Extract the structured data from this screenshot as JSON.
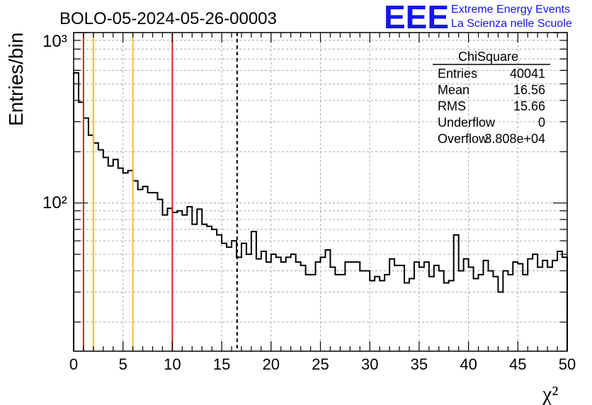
{
  "run_title": "BOLO-05-2024-05-26-00003",
  "logo": {
    "text": "EEE",
    "line1": "Extreme Energy Events",
    "line2": "La Scienza nelle Scuole",
    "color": "#1515f0"
  },
  "stats_box": {
    "title": "ChiSquare",
    "rows": [
      {
        "label": "Entries",
        "value": "40041"
      },
      {
        "label": "Mean",
        "value": "16.56"
      },
      {
        "label": "RMS",
        "value": "15.66"
      },
      {
        "label": "Underflow",
        "value": "0"
      },
      {
        "label": "Overflow",
        "value": "3.808e+04"
      }
    ]
  },
  "chart_data": {
    "type": "histogram",
    "ylabel": "Entries/bin",
    "xlabel": "χ²",
    "xlim": [
      0,
      50
    ],
    "ylim": [
      13.5,
      1000
    ],
    "y_scale": "log",
    "y_tick_labels": [
      "10²",
      "10³"
    ],
    "x_ticks": [
      0,
      5,
      10,
      15,
      20,
      25,
      30,
      35,
      40,
      45,
      50
    ],
    "grid": true,
    "bin_width": 0.5,
    "bin_counts": [
      580,
      390,
      315,
      250,
      225,
      205,
      185,
      165,
      180,
      160,
      150,
      155,
      135,
      120,
      125,
      115,
      115,
      105,
      85,
      93,
      88,
      90,
      85,
      95,
      75,
      92,
      75,
      73,
      70,
      65,
      58,
      55,
      60,
      48,
      58,
      50,
      68,
      47,
      52,
      45,
      50,
      48,
      45,
      48,
      50,
      45,
      43,
      38,
      38,
      45,
      48,
      53,
      42,
      38,
      38,
      45,
      45,
      45,
      40,
      40,
      35,
      37,
      35,
      38,
      47,
      43,
      43,
      34,
      36,
      45,
      42,
      45,
      37,
      43,
      40,
      34,
      35,
      65,
      40,
      47,
      42,
      36,
      38,
      46,
      40,
      37,
      30,
      40,
      38,
      45,
      44,
      38,
      47,
      50,
      42,
      46,
      42,
      46,
      52,
      48
    ],
    "reference_lines": [
      {
        "x": 1,
        "color": "#e02020"
      },
      {
        "x": 2,
        "color": "#f0c020"
      },
      {
        "x": 6,
        "color": "#f0c020"
      },
      {
        "x": 10,
        "color": "#e02020"
      },
      {
        "x": 16.56,
        "color": "#000000",
        "style": "dashed"
      }
    ]
  }
}
